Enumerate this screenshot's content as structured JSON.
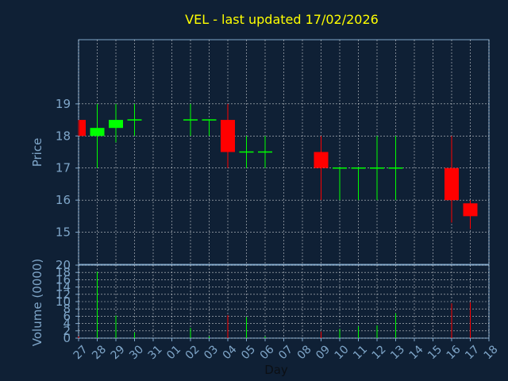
{
  "chart_data": {
    "type": "candlestick",
    "title": "VEL - last updated 17/02/2026",
    "price_axis": {
      "label": "Price",
      "ticks": [
        15,
        16,
        17,
        18,
        19
      ],
      "range": [
        14.0,
        21.0
      ]
    },
    "volume_axis": {
      "label": "Volume (0000)",
      "ticks": [
        0,
        2,
        4,
        6,
        8,
        10,
        12,
        14,
        16,
        18,
        20
      ],
      "range": [
        0,
        20
      ]
    },
    "x_axis": {
      "label": "Day",
      "ticks": [
        "27",
        "28",
        "29",
        "30",
        "31",
        "01",
        "02",
        "03",
        "04",
        "05",
        "06",
        "07",
        "08",
        "09",
        "10",
        "11",
        "12",
        "13",
        "14",
        "15",
        "16",
        "17",
        "18"
      ]
    },
    "grid": true,
    "colors": {
      "background": "#0f2035",
      "up": "#00ff00",
      "down": "#ff0000",
      "axis_text": "#7fa6c9",
      "title": "#ffff00",
      "grid": "#ffffff"
    },
    "candles": [
      {
        "day": "27",
        "open": 18.5,
        "high": 18.5,
        "low": 18.0,
        "close": 18.0
      },
      {
        "day": "28",
        "open": 18.0,
        "high": 19.0,
        "low": 17.0,
        "close": 18.25
      },
      {
        "day": "29",
        "open": 18.25,
        "high": 19.0,
        "low": 17.8,
        "close": 18.5
      },
      {
        "day": "30",
        "open": 18.5,
        "high": 19.0,
        "low": 18.0,
        "close": 18.5
      },
      {
        "day": "02",
        "open": 18.5,
        "high": 19.0,
        "low": 18.0,
        "close": 18.5
      },
      {
        "day": "03",
        "open": 18.5,
        "high": 18.5,
        "low": 18.0,
        "close": 18.5
      },
      {
        "day": "04",
        "open": 18.5,
        "high": 19.0,
        "low": 17.0,
        "close": 17.5
      },
      {
        "day": "05",
        "open": 17.5,
        "high": 18.0,
        "low": 17.0,
        "close": 17.5
      },
      {
        "day": "06",
        "open": 17.5,
        "high": 18.0,
        "low": 17.0,
        "close": 17.5
      },
      {
        "day": "09",
        "open": 17.5,
        "high": 18.0,
        "low": 16.0,
        "close": 17.0
      },
      {
        "day": "10",
        "open": 17.0,
        "high": 17.0,
        "low": 16.0,
        "close": 17.0
      },
      {
        "day": "11",
        "open": 17.0,
        "high": 17.0,
        "low": 16.0,
        "close": 17.0
      },
      {
        "day": "12",
        "open": 17.0,
        "high": 18.0,
        "low": 16.0,
        "close": 17.0
      },
      {
        "day": "13",
        "open": 17.0,
        "high": 18.0,
        "low": 16.0,
        "close": 17.0
      },
      {
        "day": "16",
        "open": 17.0,
        "high": 18.0,
        "low": 15.3,
        "close": 16.0
      },
      {
        "day": "17",
        "open": 15.9,
        "high": 16.0,
        "low": 15.1,
        "close": 15.5
      }
    ],
    "volumes": [
      {
        "day": "27",
        "value": 0.5,
        "direction": "down"
      },
      {
        "day": "28",
        "value": 18.2,
        "direction": "up"
      },
      {
        "day": "29",
        "value": 6.2,
        "direction": "up"
      },
      {
        "day": "30",
        "value": 1.5,
        "direction": "up"
      },
      {
        "day": "02",
        "value": 2.8,
        "direction": "up"
      },
      {
        "day": "03",
        "value": 0.5,
        "direction": "up"
      },
      {
        "day": "04",
        "value": 6.3,
        "direction": "down"
      },
      {
        "day": "05",
        "value": 5.8,
        "direction": "up"
      },
      {
        "day": "06",
        "value": 0.5,
        "direction": "up"
      },
      {
        "day": "09",
        "value": 1.8,
        "direction": "down"
      },
      {
        "day": "10",
        "value": 2.5,
        "direction": "up"
      },
      {
        "day": "11",
        "value": 3.2,
        "direction": "up"
      },
      {
        "day": "12",
        "value": 3.5,
        "direction": "up"
      },
      {
        "day": "13",
        "value": 6.8,
        "direction": "up"
      },
      {
        "day": "16",
        "value": 9.5,
        "direction": "down"
      },
      {
        "day": "17",
        "value": 9.8,
        "direction": "down"
      }
    ]
  }
}
